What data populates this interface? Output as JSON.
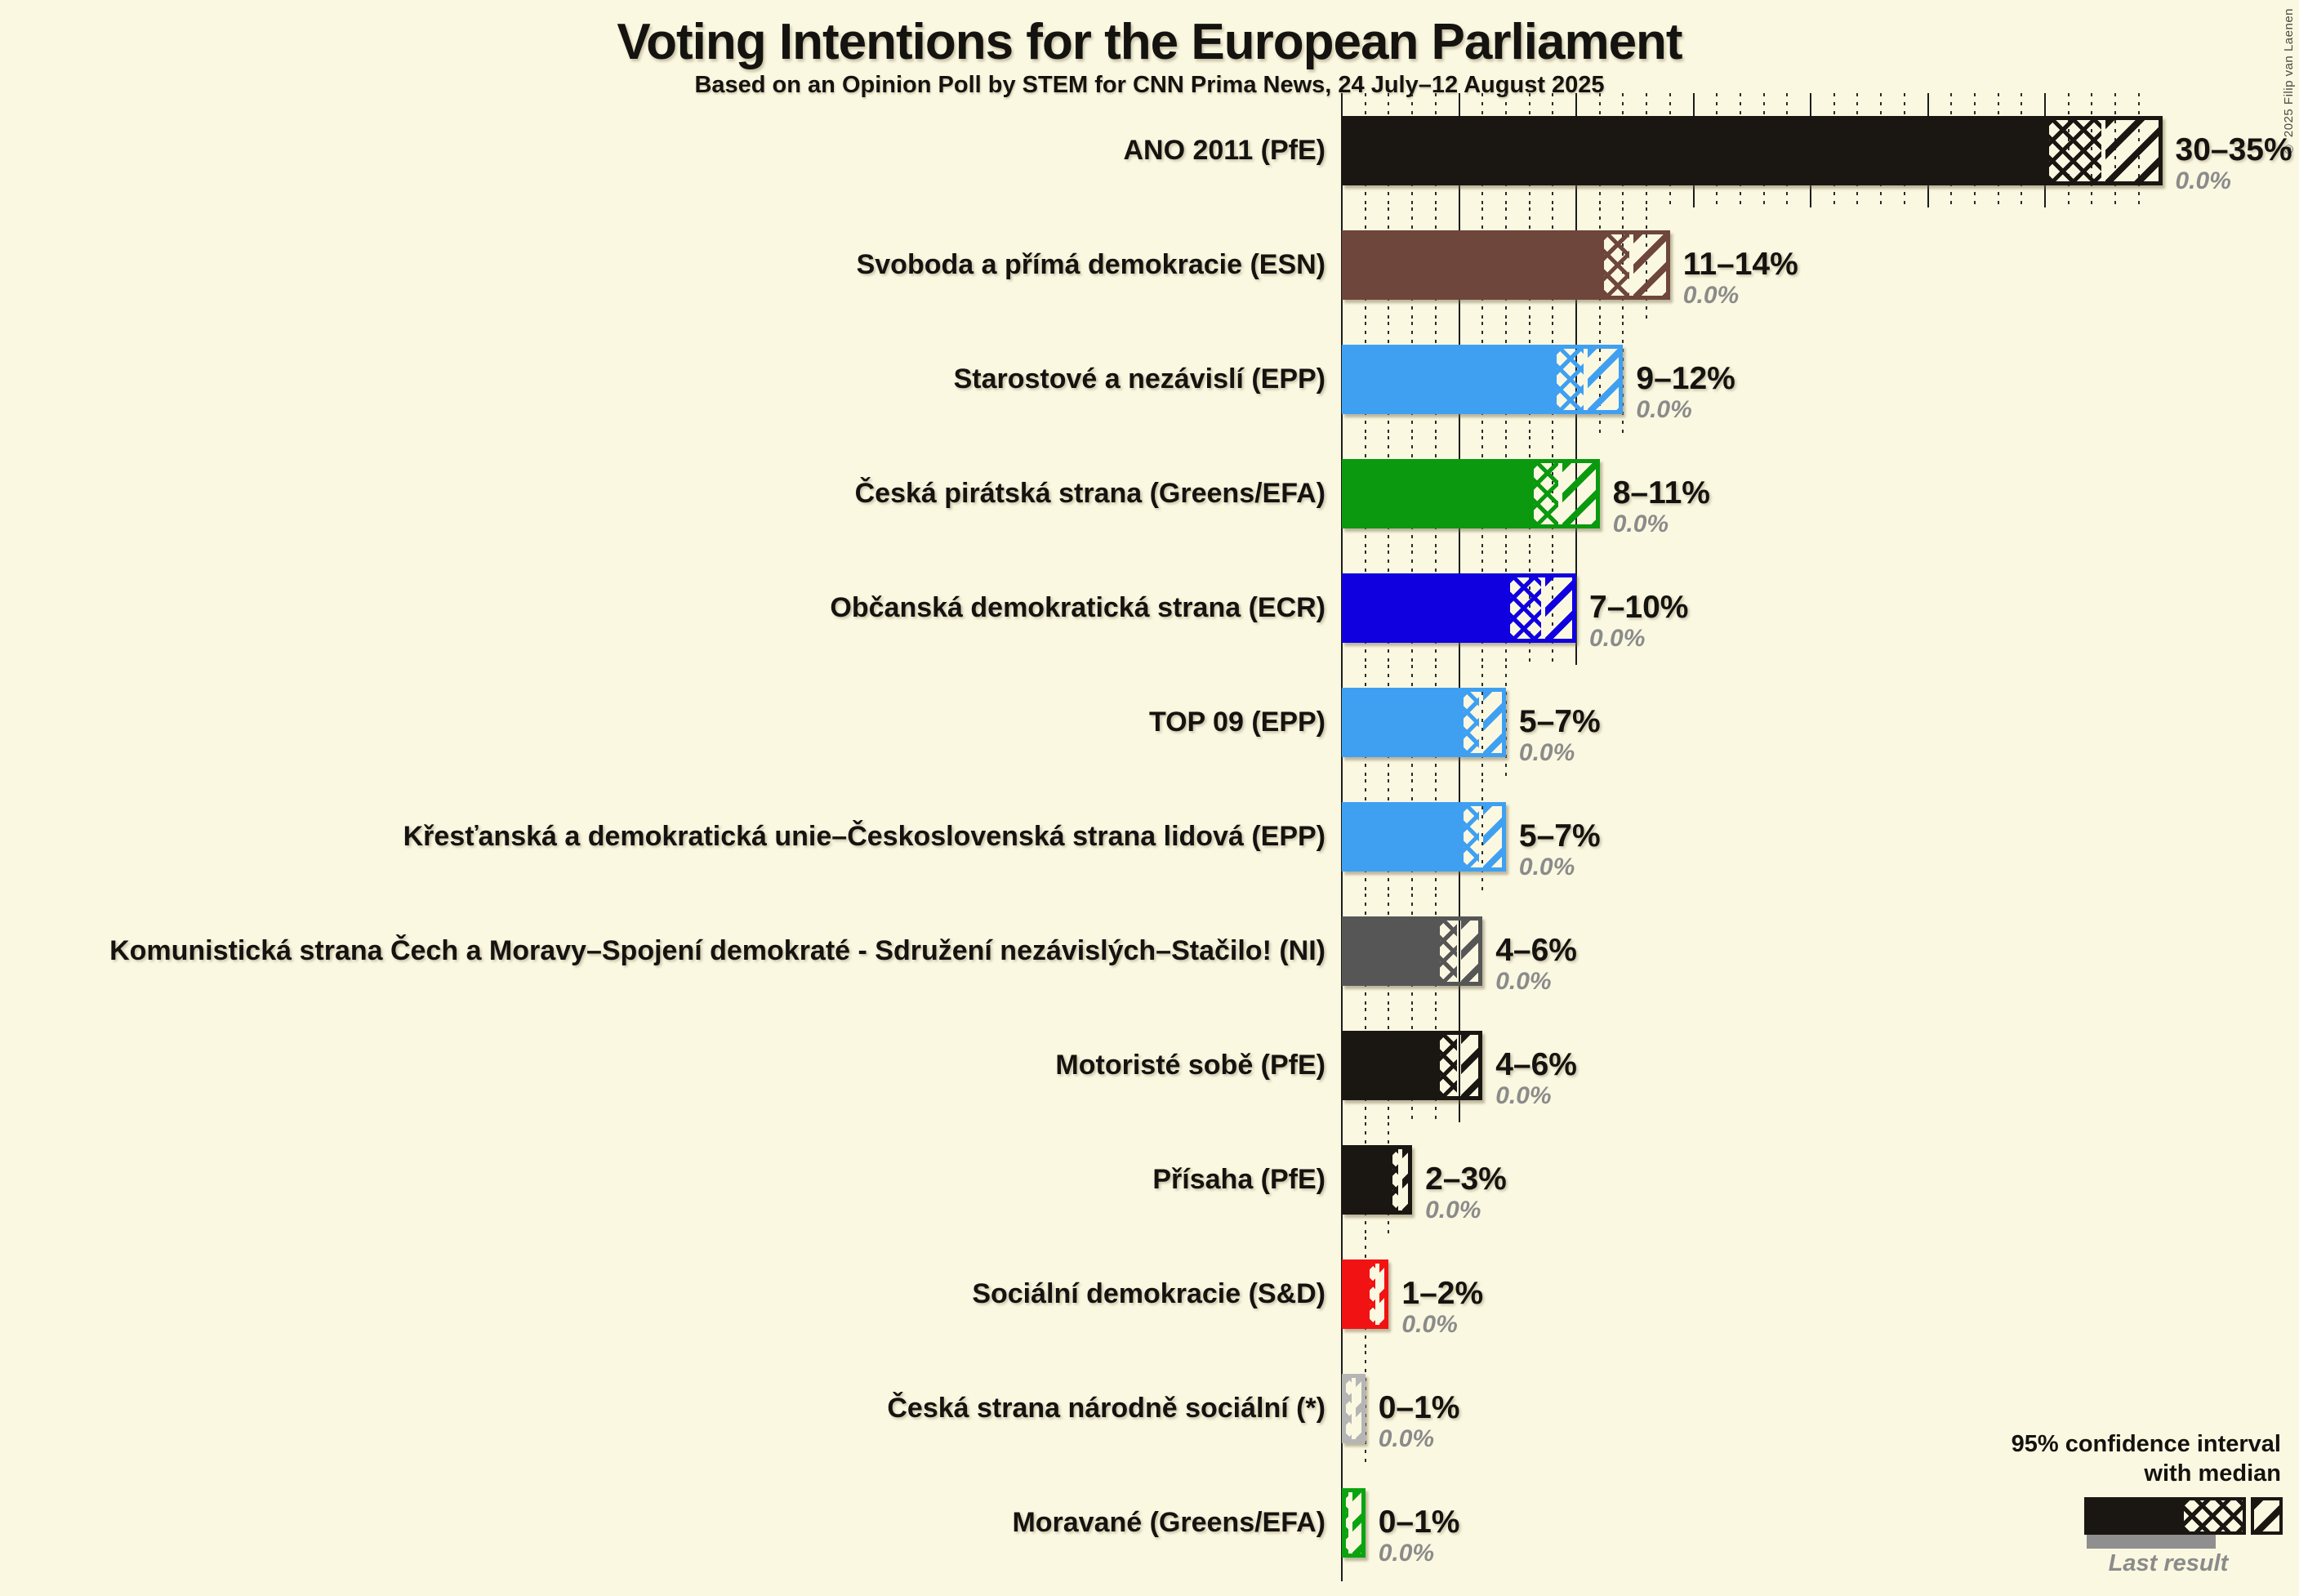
{
  "title": "Voting Intentions for the European Parliament",
  "subtitle": "Based on an Opinion Poll by STEM for CNN Prima News, 24 July–12 August 2025",
  "copyright": "© 2025 Filip van Laenen",
  "legend": {
    "line1": "95% confidence interval",
    "line2": "with median",
    "last_result_label": "Last result",
    "sample_color": "#1a1713",
    "last_result_bar_color": "#8f8f8f"
  },
  "colors": {
    "background": "#fbf8e1",
    "axis": "#1c1c1c",
    "text": "#15130f",
    "muted_text": "#8b8b8b"
  },
  "chart_data": {
    "type": "bar",
    "orientation": "horizontal",
    "unit": "percent",
    "x_axis": {
      "min": 0,
      "max": 35,
      "major_grid_step": 5,
      "minor_grid_step": 1,
      "grid": true
    },
    "rows": [
      {
        "party": "ANO 2011 (PfE)",
        "range_label": "30–35%",
        "ci_low": 30,
        "median": 32.5,
        "ci_high": 35,
        "grid_max": 34,
        "last_result": 0.0,
        "last_result_label": "0.0%",
        "color": "#1a1713"
      },
      {
        "party": "Svoboda a přímá demokracie (ESN)",
        "range_label": "11–14%",
        "ci_low": 11,
        "median": 12.3,
        "ci_high": 14,
        "grid_max": 13,
        "last_result": 0.0,
        "last_result_label": "0.0%",
        "color": "#6e463b"
      },
      {
        "party": "Starostové a nezávislí (EPP)",
        "range_label": "9–12%",
        "ci_low": 9,
        "median": 10.4,
        "ci_high": 12,
        "grid_max": 12,
        "last_result": 0.0,
        "last_result_label": "0.0%",
        "color": "#3fa0f2"
      },
      {
        "party": "Česká pirátská strana (Greens/EFA)",
        "range_label": "8–11%",
        "ci_low": 8,
        "median": 9.3,
        "ci_high": 11,
        "grid_max": 10,
        "last_result": 0.0,
        "last_result_label": "0.0%",
        "color": "#0a990f"
      },
      {
        "party": "Občanská demokratická strana (ECR)",
        "range_label": "7–10%",
        "ci_low": 7,
        "median": 8.6,
        "ci_high": 10,
        "grid_max": 10,
        "last_result": 0.0,
        "last_result_label": "0.0%",
        "color": "#1000e0"
      },
      {
        "party": "TOP 09 (EPP)",
        "range_label": "5–7%",
        "ci_low": 5,
        "median": 5.9,
        "ci_high": 7,
        "grid_max": 7,
        "last_result": 0.0,
        "last_result_label": "0.0%",
        "color": "#3fa0f2"
      },
      {
        "party": "Křesťanská a demokratická unie–Československá strana lidová (EPP)",
        "range_label": "5–7%",
        "ci_low": 5,
        "median": 5.9,
        "ci_high": 7,
        "grid_max": 6,
        "last_result": 0.0,
        "last_result_label": "0.0%",
        "color": "#3fa0f2"
      },
      {
        "party": "Komunistická strana Čech a Moravy–Spojení demokraté - Sdružení nezávislých–Stačilo! (NI)",
        "range_label": "4–6%",
        "ci_low": 4,
        "median": 5.0,
        "ci_high": 6,
        "grid_max": 5,
        "last_result": 0.0,
        "last_result_label": "0.0%",
        "color": "#565656"
      },
      {
        "party": "Motoristé sobě (PfE)",
        "range_label": "4–6%",
        "ci_low": 4,
        "median": 5.0,
        "ci_high": 6,
        "grid_max": 5,
        "last_result": 0.0,
        "last_result_label": "0.0%",
        "color": "#1a1713"
      },
      {
        "party": "Přísaha (PfE)",
        "range_label": "2–3%",
        "ci_low": 2,
        "median": 2.5,
        "ci_high": 3,
        "grid_max": 2,
        "last_result": 0.0,
        "last_result_label": "0.0%",
        "color": "#1a1713"
      },
      {
        "party": "Sociální demokracie (S&D)",
        "range_label": "1–2%",
        "ci_low": 1,
        "median": 1.5,
        "ci_high": 2,
        "grid_max": 1,
        "last_result": 0.0,
        "last_result_label": "0.0%",
        "color": "#f11313"
      },
      {
        "party": "Česká strana národně sociální (*)",
        "range_label": "0–1%",
        "ci_low": 0,
        "median": 0.5,
        "ci_high": 1,
        "grid_max": 1,
        "last_result": 0.0,
        "last_result_label": "0.0%",
        "color": "#b5b5b5"
      },
      {
        "party": "Moravané (Greens/EFA)",
        "range_label": "0–1%",
        "ci_low": 0,
        "median": 0.2,
        "ci_high": 1,
        "grid_max": 0,
        "last_result": 0.0,
        "last_result_label": "0.0%",
        "color": "#0ba410"
      }
    ]
  }
}
